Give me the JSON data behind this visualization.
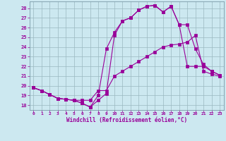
{
  "xlabel": "Windchill (Refroidissement éolien,°C)",
  "line_color": "#990099",
  "bg_color": "#cce8f0",
  "grid_color": "#b0c8d0",
  "ylim": [
    17.5,
    28.7
  ],
  "xlim": [
    -0.5,
    23.5
  ],
  "yticks": [
    18,
    19,
    20,
    21,
    22,
    23,
    24,
    25,
    26,
    27,
    28
  ],
  "xticks": [
    0,
    1,
    2,
    3,
    4,
    5,
    6,
    7,
    8,
    9,
    10,
    11,
    12,
    13,
    14,
    15,
    16,
    17,
    18,
    19,
    20,
    21,
    22,
    23
  ],
  "line1_x": [
    0,
    1,
    2,
    3,
    4,
    5,
    6,
    7,
    8,
    9,
    10,
    11,
    12,
    13,
    14,
    15,
    16,
    17,
    18,
    19,
    20,
    21,
    22,
    23
  ],
  "line1_y": [
    19.8,
    19.5,
    19.1,
    18.7,
    18.6,
    18.5,
    18.5,
    18.5,
    19.5,
    19.5,
    21.0,
    21.5,
    22.0,
    22.5,
    23.0,
    23.5,
    24.0,
    24.2,
    24.3,
    24.5,
    25.2,
    21.5,
    21.2,
    21.0
  ],
  "line2_x": [
    0,
    1,
    2,
    3,
    4,
    5,
    6,
    7,
    8,
    9,
    10,
    11,
    12,
    13,
    14,
    15,
    16,
    17,
    18,
    19,
    20,
    21,
    22,
    23
  ],
  "line2_y": [
    19.8,
    19.5,
    19.1,
    18.7,
    18.6,
    18.5,
    18.2,
    17.8,
    18.5,
    19.2,
    25.2,
    26.7,
    27.0,
    27.8,
    28.2,
    28.3,
    27.6,
    28.2,
    26.3,
    26.3,
    23.8,
    22.2,
    21.5,
    21.1
  ],
  "line3_x": [
    0,
    1,
    2,
    3,
    4,
    5,
    6,
    7,
    8,
    9,
    10,
    11,
    12,
    13,
    14,
    15,
    16,
    17,
    18,
    19,
    20,
    21,
    22,
    23
  ],
  "line3_y": [
    19.8,
    19.5,
    19.1,
    18.7,
    18.6,
    18.5,
    18.2,
    17.8,
    19.0,
    23.8,
    25.5,
    26.7,
    27.0,
    27.8,
    28.2,
    28.3,
    27.6,
    28.2,
    26.3,
    22.0,
    22.0,
    22.0,
    21.5,
    21.1
  ]
}
